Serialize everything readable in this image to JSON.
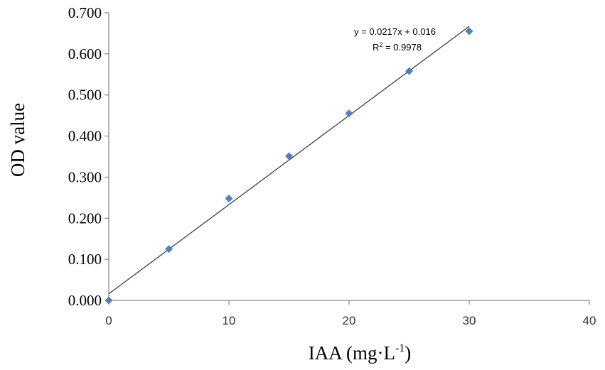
{
  "chart_data": {
    "type": "scatter",
    "xlabel": "IAA (mg·L",
    "xlabel_sup": "-1",
    "xlabel_suffix": ")",
    "ylabel": "OD value",
    "xlim": [
      0,
      40
    ],
    "ylim": [
      0,
      0.7
    ],
    "x_ticks": [
      "0",
      "10",
      "20",
      "30",
      "40"
    ],
    "y_ticks": [
      "0.000",
      "0.100",
      "0.200",
      "0.300",
      "0.400",
      "0.500",
      "0.600",
      "0.700"
    ],
    "grid": false,
    "legend": "none",
    "series": [
      {
        "color": "#4F81BD",
        "marker": "diamond",
        "x": [
          0,
          5,
          10,
          15,
          20,
          25,
          30
        ],
        "y": [
          0.0,
          0.125,
          0.248,
          0.351,
          0.455,
          0.558,
          0.655
        ]
      }
    ],
    "trendline": {
      "slope": 0.0217,
      "intercept": 0.016,
      "x_range": [
        0,
        30
      ],
      "color": "#404040"
    },
    "annotations": {
      "equation": "y = 0.0217x + 0.016",
      "r2_prefix": "R",
      "r2_sup": "2",
      "r2_value": " = 0.9978"
    }
  }
}
